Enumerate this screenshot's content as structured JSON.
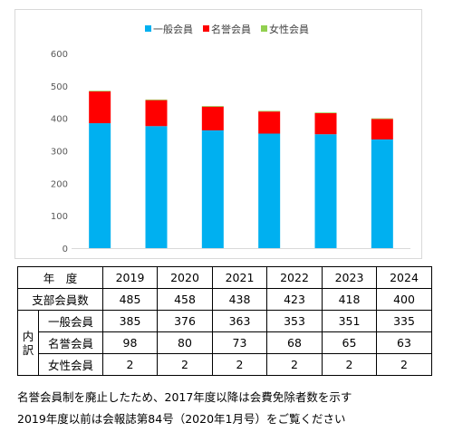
{
  "chart_data": {
    "type": "bar",
    "stacked": true,
    "categories": [
      "2019",
      "2020",
      "2021",
      "2022",
      "2023",
      "2024"
    ],
    "series": [
      {
        "name": "一般会員",
        "values": [
          385,
          376,
          363,
          353,
          351,
          335
        ],
        "color": "#00b0f0"
      },
      {
        "name": "名誉会員",
        "values": [
          98,
          80,
          73,
          68,
          65,
          63
        ],
        "color": "#ff0000"
      },
      {
        "name": "女性会員",
        "values": [
          2,
          2,
          2,
          2,
          2,
          2
        ],
        "color": "#92d050"
      }
    ],
    "yticks": [
      "0",
      "100",
      "200",
      "300",
      "400",
      "500",
      "600"
    ],
    "ylim": [
      0,
      600
    ],
    "grid": false,
    "legend": "top"
  },
  "table": {
    "header_label": "年　度",
    "years": [
      "2019",
      "2020",
      "2021",
      "2022",
      "2023",
      "2024"
    ],
    "total_label": "支部会員数",
    "totals": [
      "485",
      "458",
      "438",
      "423",
      "418",
      "400"
    ],
    "breakdown_label": "内訳",
    "rows": [
      {
        "label": "一般会員",
        "values": [
          "385",
          "376",
          "363",
          "353",
          "351",
          "335"
        ]
      },
      {
        "label": "名誉会員",
        "values": [
          "98",
          "80",
          "73",
          "68",
          "65",
          "63"
        ]
      },
      {
        "label": "女性会員",
        "values": [
          "2",
          "2",
          "2",
          "2",
          "2",
          "2"
        ]
      }
    ]
  },
  "notes": [
    "名誉会員制を廃止したため、2017年度以降は会費免除者数を示す",
    "2019年度以前は会報誌第84号（2020年1月号）をご覧ください"
  ]
}
